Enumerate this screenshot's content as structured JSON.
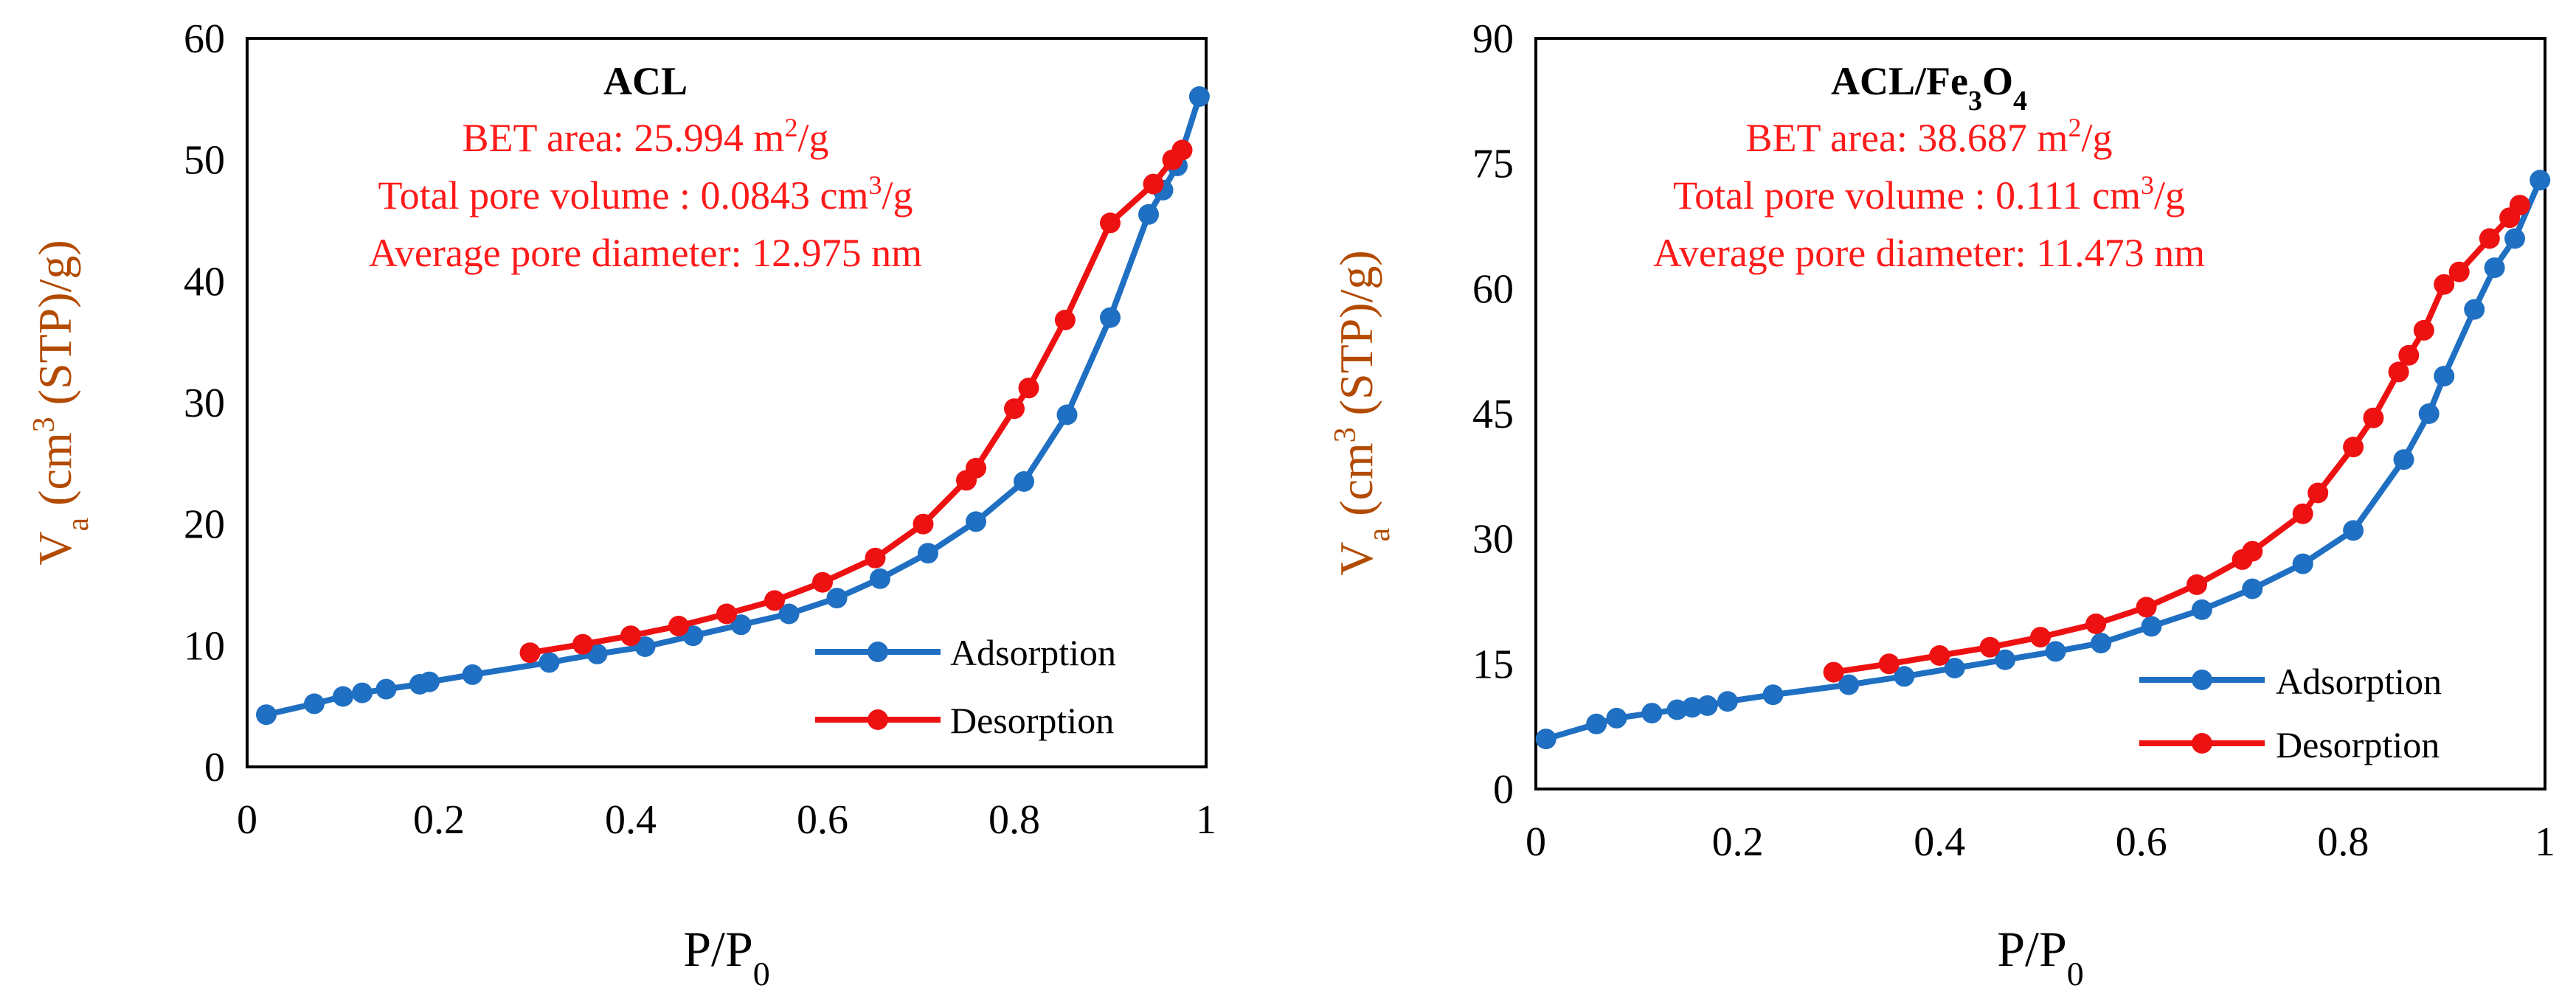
{
  "chart_data": [
    {
      "type": "line",
      "title": "ACL",
      "annotations": [
        {
          "prefix": "BET area: 25.994 m",
          "sup": "2",
          "suffix": "/g"
        },
        {
          "prefix": "Total pore volume : 0.0843 cm",
          "sup": "3",
          "suffix": "/g"
        },
        {
          "prefix": "Average pore diameter: 12.975 nm",
          "sup": "",
          "suffix": ""
        }
      ],
      "xlabel": {
        "main": "P/P",
        "sub": "0"
      },
      "ylabel": {
        "v": "V",
        "vsub": "a",
        "open": " (cm",
        "sup": "3",
        "close": " (STP)/g)"
      },
      "xlim": [
        0,
        1
      ],
      "ylim": [
        0,
        60
      ],
      "xticks": [
        0,
        0.2,
        0.4,
        0.6,
        0.8,
        1
      ],
      "xtick_labels": [
        "0",
        "0.2",
        "0.4",
        "0.6",
        "0.8",
        "1"
      ],
      "yticks": [
        0,
        10,
        20,
        30,
        40,
        50,
        60
      ],
      "ytick_labels": [
        "0",
        "10",
        "20",
        "30",
        "40",
        "50",
        "60"
      ],
      "legend_position": "bottom-right",
      "series": [
        {
          "name": "Adsorption",
          "color": "#1f6fc2",
          "x": [
            0.02,
            0.07,
            0.1,
            0.12,
            0.145,
            0.18,
            0.19,
            0.235,
            0.315,
            0.365,
            0.415,
            0.465,
            0.515,
            0.565,
            0.615,
            0.66,
            0.71,
            0.76,
            0.81,
            0.855,
            0.9,
            0.94,
            0.955,
            0.97,
            0.993
          ],
          "y": [
            4.3,
            5.2,
            5.8,
            6.1,
            6.4,
            6.8,
            7.0,
            7.6,
            8.6,
            9.3,
            9.9,
            10.8,
            11.7,
            12.6,
            13.9,
            15.5,
            17.6,
            20.2,
            23.5,
            29.0,
            37.0,
            45.5,
            47.5,
            49.5,
            55.2
          ]
        },
        {
          "name": "Desorption",
          "color": "#ee1111",
          "x": [
            0.295,
            0.35,
            0.4,
            0.45,
            0.5,
            0.55,
            0.6,
            0.655,
            0.705,
            0.75,
            0.76,
            0.8,
            0.815,
            0.853,
            0.9,
            0.945,
            0.965,
            0.975
          ],
          "y": [
            9.4,
            10.1,
            10.8,
            11.6,
            12.6,
            13.7,
            15.2,
            17.2,
            20.0,
            23.6,
            24.6,
            29.5,
            31.2,
            36.8,
            44.8,
            48.0,
            50.0,
            50.8
          ]
        }
      ]
    },
    {
      "type": "line",
      "title": {
        "prefix": "ACL/Fe",
        "sub1": "3",
        "mid": "O",
        "sub2": "4"
      },
      "annotations": [
        {
          "prefix": "BET area: 38.687 m",
          "sup": "2",
          "suffix": "/g"
        },
        {
          "prefix": "Total pore volume : 0.111 cm",
          "sup": "3",
          "suffix": "/g"
        },
        {
          "prefix": "Average pore diameter: 11.473 nm",
          "sup": "",
          "suffix": ""
        }
      ],
      "xlabel": {
        "main": "P/P",
        "sub": "0"
      },
      "ylabel": {
        "v": "V",
        "vsub": "a",
        "open": " (cm",
        "sup": "3",
        "close": " (STP)/g)"
      },
      "xlim": [
        0,
        1
      ],
      "ylim": [
        0,
        90
      ],
      "xticks": [
        0,
        0.2,
        0.4,
        0.6,
        0.8,
        1
      ],
      "xtick_labels": [
        "0",
        "0.2",
        "0.4",
        "0.6",
        "0.8",
        "1"
      ],
      "yticks": [
        0,
        15,
        30,
        45,
        60,
        75,
        90
      ],
      "ytick_labels": [
        "0",
        "15",
        "30",
        "45",
        "60",
        "75",
        "90"
      ],
      "legend_position": "bottom-right",
      "series": [
        {
          "name": "Adsorption",
          "color": "#1f6fc2",
          "x": [
            0.01,
            0.06,
            0.08,
            0.115,
            0.14,
            0.155,
            0.17,
            0.19,
            0.235,
            0.31,
            0.365,
            0.415,
            0.465,
            0.515,
            0.56,
            0.61,
            0.66,
            0.71,
            0.76,
            0.81,
            0.86,
            0.885,
            0.9,
            0.93,
            0.95,
            0.97,
            0.995
          ],
          "y": [
            6.0,
            7.8,
            8.5,
            9.1,
            9.5,
            9.8,
            10.0,
            10.5,
            11.3,
            12.5,
            13.5,
            14.5,
            15.5,
            16.5,
            17.5,
            19.5,
            21.5,
            24.0,
            27.0,
            31.0,
            39.5,
            45.0,
            49.5,
            57.5,
            62.5,
            66.0,
            73.0
          ]
        },
        {
          "name": "Desorption",
          "color": "#ee1111",
          "x": [
            0.295,
            0.35,
            0.4,
            0.45,
            0.5,
            0.555,
            0.605,
            0.655,
            0.7,
            0.71,
            0.76,
            0.775,
            0.81,
            0.83,
            0.855,
            0.865,
            0.88,
            0.9,
            0.915,
            0.945,
            0.965,
            0.975
          ],
          "y": [
            14.0,
            15.0,
            16.0,
            17.0,
            18.2,
            19.8,
            21.8,
            24.5,
            27.5,
            28.5,
            33.0,
            35.5,
            41.0,
            44.5,
            50.0,
            52.0,
            55.0,
            60.5,
            62.0,
            66.0,
            68.5,
            70.0
          ]
        }
      ]
    }
  ]
}
